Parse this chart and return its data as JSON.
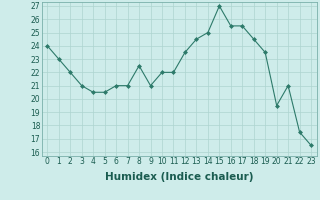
{
  "x": [
    0,
    1,
    2,
    3,
    4,
    5,
    6,
    7,
    8,
    9,
    10,
    11,
    12,
    13,
    14,
    15,
    16,
    17,
    18,
    19,
    20,
    21,
    22,
    23
  ],
  "y": [
    24.0,
    23.0,
    22.0,
    21.0,
    20.5,
    20.5,
    21.0,
    21.0,
    22.5,
    21.0,
    22.0,
    22.0,
    23.5,
    24.5,
    25.0,
    27.0,
    25.5,
    25.5,
    24.5,
    23.5,
    19.5,
    21.0,
    17.5,
    16.5
  ],
  "xlabel": "Humidex (Indice chaleur)",
  "ylim_min": 16,
  "ylim_max": 27,
  "xlim_min": -0.5,
  "xlim_max": 23.5,
  "yticks": [
    16,
    17,
    18,
    19,
    20,
    21,
    22,
    23,
    24,
    25,
    26,
    27
  ],
  "xticks": [
    0,
    1,
    2,
    3,
    4,
    5,
    6,
    7,
    8,
    9,
    10,
    11,
    12,
    13,
    14,
    15,
    16,
    17,
    18,
    19,
    20,
    21,
    22,
    23
  ],
  "line_color": "#2d7a6a",
  "marker_color": "#2d7a6a",
  "bg_color": "#ceecea",
  "grid_color": "#aed4d0",
  "tick_label_fontsize": 5.5,
  "xlabel_fontsize": 7.5
}
